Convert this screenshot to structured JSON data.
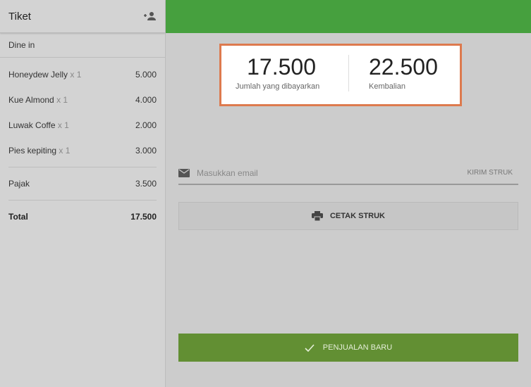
{
  "ticket": {
    "title": "Tiket",
    "dining_option": "Dine in",
    "items": [
      {
        "name": "Honeydew Jelly",
        "qty": "x 1",
        "price": "5.000"
      },
      {
        "name": "Kue Almond",
        "qty": "x 1",
        "price": "4.000"
      },
      {
        "name": "Luwak Coffe",
        "qty": "x 1",
        "price": "2.000"
      },
      {
        "name": "Pies kepiting",
        "qty": "x 1",
        "price": "3.000"
      }
    ],
    "tax_label": "Pajak",
    "tax_value": "3.500",
    "total_label": "Total",
    "total_value": "17.500"
  },
  "summary": {
    "paid_value": "17.500",
    "paid_label": "Jumlah yang dibayarkan",
    "change_value": "22.500",
    "change_label": "Kembalian"
  },
  "email": {
    "placeholder": "Masukkan email",
    "send_label": "KIRIM STRUK"
  },
  "print_label": "CETAK STRUK",
  "new_sale_label": "PENJUALAN BARU",
  "colors": {
    "topbar": "#46a03e",
    "highlight_border": "#dd7a4e",
    "new_sale": "#628f33"
  }
}
